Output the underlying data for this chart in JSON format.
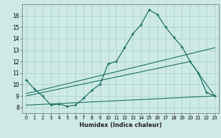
{
  "xlabel": "Humidex (Indice chaleur)",
  "ylabel": "",
  "bg_color": "#cdeae4",
  "line_color": "#1a6e60",
  "grid_color": "#aed4cc",
  "xlim": [
    -0.5,
    23.5
  ],
  "ylim": [
    7.5,
    17.0
  ],
  "xticks": [
    0,
    1,
    2,
    3,
    4,
    5,
    6,
    7,
    8,
    9,
    10,
    11,
    12,
    13,
    14,
    15,
    16,
    17,
    18,
    19,
    20,
    21,
    22,
    23
  ],
  "yticks": [
    8,
    9,
    10,
    11,
    12,
    13,
    14,
    15,
    16
  ],
  "main_x": [
    0,
    1,
    2,
    3,
    4,
    5,
    6,
    7,
    8,
    9,
    10,
    11,
    12,
    13,
    14,
    15,
    16,
    17,
    18,
    19,
    20,
    21,
    22,
    23
  ],
  "main_y": [
    10.4,
    9.6,
    9.0,
    8.2,
    8.3,
    8.1,
    8.2,
    8.8,
    9.5,
    10.0,
    11.8,
    12.0,
    13.2,
    14.4,
    15.2,
    16.5,
    16.1,
    15.0,
    14.1,
    13.3,
    12.0,
    11.0,
    9.3,
    9.0
  ],
  "line2_x": [
    0,
    23
  ],
  "line2_y": [
    9.2,
    13.2
  ],
  "line3_x": [
    0,
    20,
    23
  ],
  "line3_y": [
    9.0,
    12.0,
    9.0
  ],
  "line4_x": [
    0,
    23
  ],
  "line4_y": [
    8.2,
    9.0
  ],
  "xlabel_fontsize": 6.0,
  "tick_fontsize": 4.8,
  "ytick_fontsize": 5.5
}
